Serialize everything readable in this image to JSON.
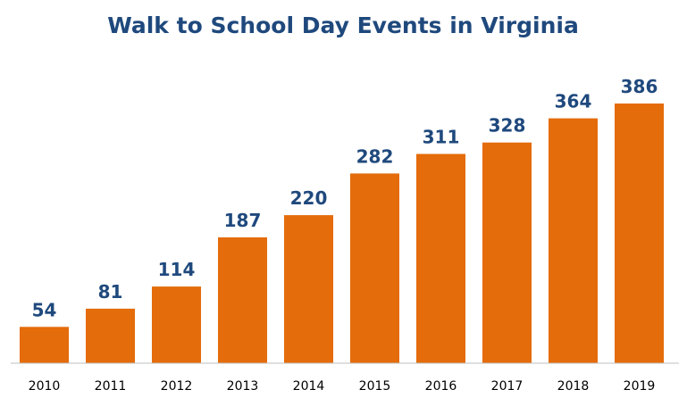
{
  "chart_data": {
    "type": "bar",
    "title": "Walk to School Day Events in Virginia",
    "categories": [
      "2010",
      "2011",
      "2012",
      "2013",
      "2014",
      "2015",
      "2016",
      "2017",
      "2018",
      "2019"
    ],
    "values": [
      54,
      81,
      114,
      187,
      220,
      282,
      311,
      328,
      364,
      386
    ],
    "data_labels": [
      "54",
      "81",
      "114",
      "187",
      "220",
      "282",
      "311",
      "328",
      "364",
      "386"
    ],
    "xlabel": "",
    "ylabel": "",
    "ylim": [
      0,
      386
    ],
    "grid": false,
    "legend": "none",
    "colors": {
      "bar": "#E46C0A",
      "title": "#1F497D",
      "data_label": "#1F497D",
      "tick_label": "#000000",
      "axis_line": "#BFBFBF"
    }
  }
}
